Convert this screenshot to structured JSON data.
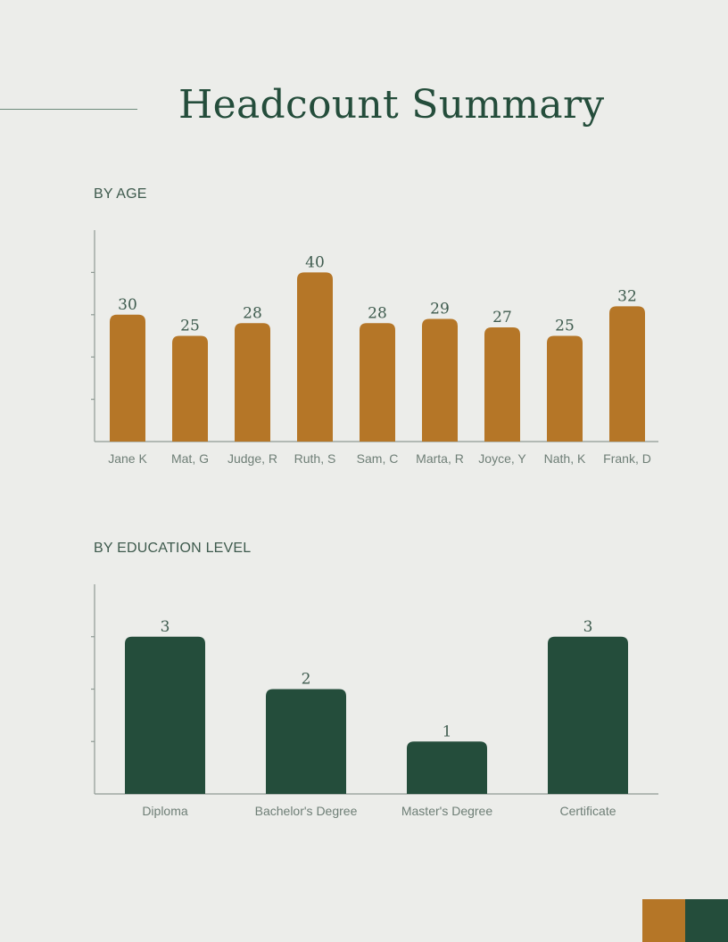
{
  "header": {
    "title": "Headcount Summary"
  },
  "colors": {
    "background": "#ECEDEA",
    "accent_ochre": "#B57627",
    "accent_green": "#244D3B",
    "title_text": "#244D3B"
  },
  "chart_data": [
    {
      "type": "bar",
      "title": "BY AGE",
      "categories": [
        "Jane K",
        "Mat, G",
        "Judge, R",
        "Ruth, S",
        "Sam, C",
        "Marta, R",
        "Joyce, Y",
        "Nath, K",
        "Frank, D"
      ],
      "values": [
        30,
        25,
        28,
        40,
        28,
        29,
        27,
        25,
        32
      ],
      "ylim": [
        0,
        50
      ],
      "grid": false,
      "bar_color": "#B57627"
    },
    {
      "type": "bar",
      "title": "BY EDUCATION LEVEL",
      "categories": [
        "Diploma",
        "Bachelor's Degree",
        "Master's Degree",
        "Certificate"
      ],
      "values": [
        3,
        2,
        1,
        3
      ],
      "ylim": [
        0,
        4
      ],
      "grid": false,
      "bar_color": "#244D3B"
    }
  ]
}
